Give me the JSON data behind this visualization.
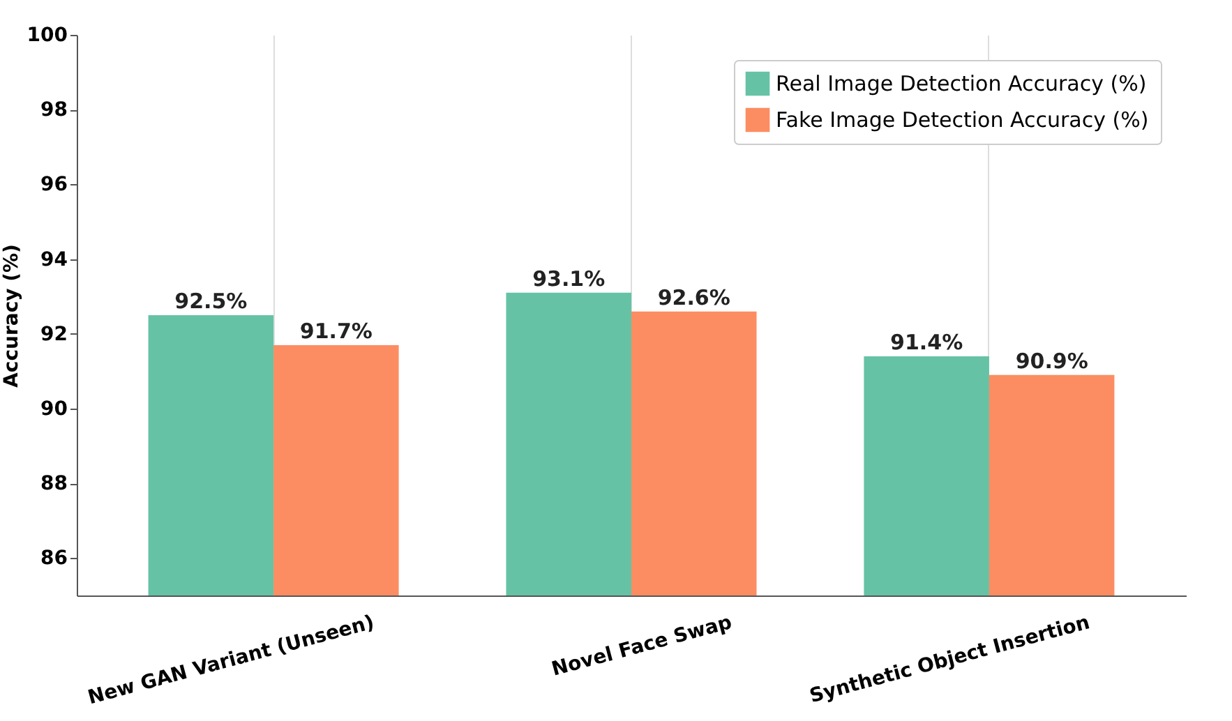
{
  "chart_data": {
    "type": "bar",
    "ylabel": "Accuracy (%)",
    "categories": [
      "New GAN Variant (Unseen)",
      "Novel Face Swap",
      "Synthetic Object Insertion"
    ],
    "series": [
      {
        "name": "Real Image Detection Accuracy (%)",
        "color": "#66c2a5",
        "values": [
          92.5,
          93.1,
          91.4
        ],
        "value_labels": [
          "92.5%",
          "93.1%",
          "91.4%"
        ]
      },
      {
        "name": "Fake Image Detection Accuracy (%)",
        "color": "#fc8d62",
        "values": [
          91.7,
          92.6,
          90.9
        ],
        "value_labels": [
          "91.7%",
          "92.6%",
          "90.9%"
        ]
      }
    ],
    "ylim": [
      85,
      100
    ],
    "yticks": [
      86,
      88,
      90,
      92,
      94,
      96,
      98,
      100
    ],
    "grid": "x",
    "legend": "top right"
  }
}
